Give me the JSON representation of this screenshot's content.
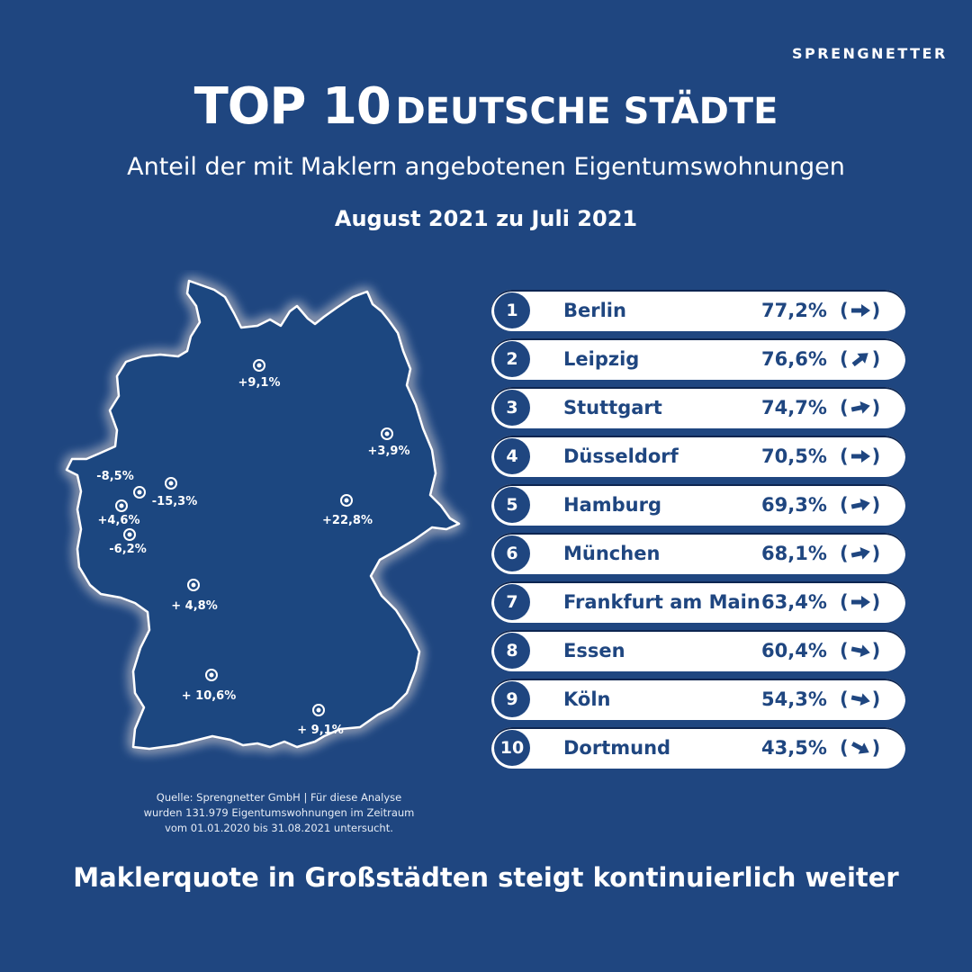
{
  "logo": "SPRENGNETTER",
  "title_big": "TOP 10",
  "title_small": "DEUTSCHE STÄDTE",
  "subtitle": "Anteil der mit Maklern angebotenen Eigentumswohnungen",
  "period": "August 2021 zu Juli 2021",
  "map_markers": [
    {
      "label": "+9,1%"
    },
    {
      "label": "+3,9%"
    },
    {
      "label": "-8,5%"
    },
    {
      "label": "-15,3%"
    },
    {
      "label": "+4,6%"
    },
    {
      "label": "-6,2%"
    },
    {
      "label": "+22,8%"
    },
    {
      "label": "+ 4,8%"
    },
    {
      "label": "+ 10,6%"
    },
    {
      "label": "+ 9,1%"
    }
  ],
  "ranking": [
    {
      "rank": "1",
      "city": "Berlin",
      "value": "77,2%",
      "trend": "flat"
    },
    {
      "rank": "2",
      "city": "Leipzig",
      "value": "76,6%",
      "trend": "up"
    },
    {
      "rank": "3",
      "city": "Stuttgart",
      "value": "74,7%",
      "trend": "slight-up"
    },
    {
      "rank": "4",
      "city": "Düsseldorf",
      "value": "70,5%",
      "trend": "flat"
    },
    {
      "rank": "5",
      "city": "Hamburg",
      "value": "69,3%",
      "trend": "slight-up"
    },
    {
      "rank": "6",
      "city": "München",
      "value": "68,1%",
      "trend": "slight-up"
    },
    {
      "rank": "7",
      "city": "Frankfurt am Main",
      "value": "63,4%",
      "trend": "flat"
    },
    {
      "rank": "8",
      "city": "Essen",
      "value": "60,4%",
      "trend": "slight-down"
    },
    {
      "rank": "9",
      "city": "Köln",
      "value": "54,3%",
      "trend": "slight-down"
    },
    {
      "rank": "10",
      "city": "Dortmund",
      "value": "43,5%",
      "trend": "down"
    }
  ],
  "source_lines": [
    "Quelle: Sprengnetter GmbH | Für diese Analyse",
    "wurden 131.979 Eigentumswohnungen im Zeitraum",
    "vom 01.01.2020 bis 31.08.2021 untersucht."
  ],
  "bottom_line": "Maklerquote in Großstädten steigt kontinuierlich weiter"
}
